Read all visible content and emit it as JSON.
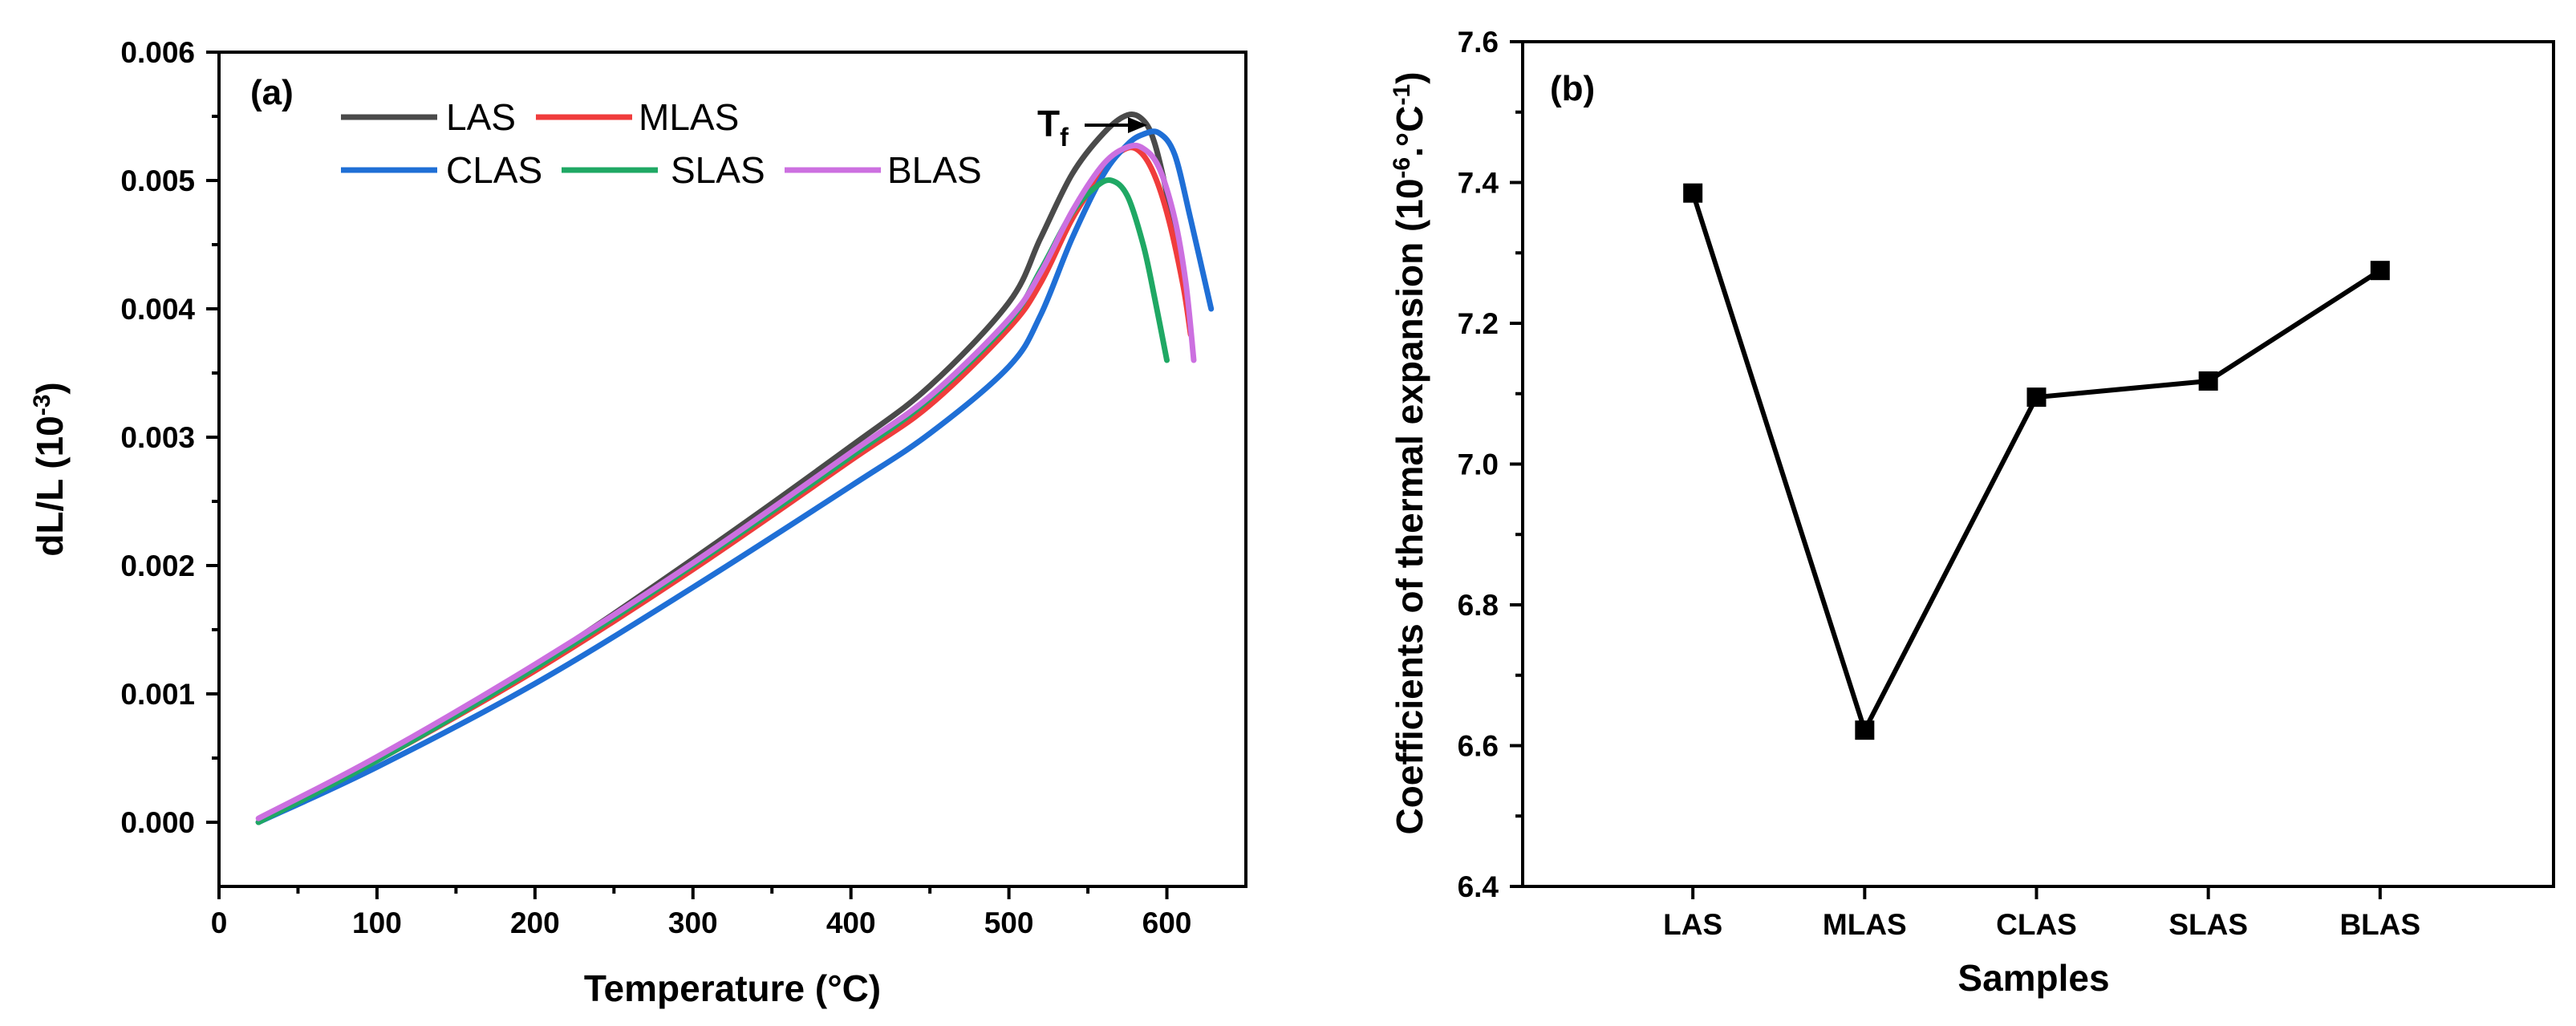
{
  "chart_data": [
    {
      "panel": "(a)",
      "type": "line",
      "xlabel": "Temperature (°C)",
      "ylabel_main": "dL/L (10",
      "ylabel_sup": "-3",
      "ylabel_end": ")",
      "xlim": [
        0,
        650
      ],
      "ylim": [
        -0.0005,
        0.006
      ],
      "xticks": [
        0,
        100,
        200,
        300,
        400,
        500,
        600
      ],
      "xtick_labels": [
        "0",
        "100",
        "200",
        "300",
        "400",
        "500",
        "600"
      ],
      "yticks": [
        0.0,
        0.001,
        0.002,
        0.003,
        0.004,
        0.005,
        0.006
      ],
      "ytick_labels": [
        "0.000",
        "0.001",
        "0.002",
        "0.003",
        "0.004",
        "0.005",
        "0.006"
      ],
      "legend_position": "top-left",
      "annotation": {
        "text": "T",
        "sub": "f"
      },
      "series": [
        {
          "name": "LAS",
          "color": "#4a4a4a",
          "x": [
            25,
            100,
            200,
            300,
            400,
            450,
            500,
            520,
            540,
            560,
            575,
            585,
            592,
            600,
            608
          ],
          "y": [
            0.0,
            0.0005,
            0.00122,
            0.00205,
            0.00293,
            0.0034,
            0.00405,
            0.00455,
            0.00505,
            0.00537,
            0.00551,
            0.00547,
            0.0053,
            0.0049,
            0.0044
          ]
        },
        {
          "name": "MLAS",
          "color": "#f03c3c",
          "x": [
            25,
            100,
            200,
            300,
            400,
            450,
            500,
            520,
            540,
            560,
            570,
            580,
            590,
            600,
            610,
            615
          ],
          "y": [
            0.0,
            0.00048,
            0.00118,
            0.00197,
            0.00282,
            0.00325,
            0.00385,
            0.0042,
            0.0047,
            0.00508,
            0.00522,
            0.00525,
            0.0051,
            0.00475,
            0.0042,
            0.0038
          ]
        },
        {
          "name": "CLAS",
          "color": "#1f6fd6",
          "x": [
            25,
            100,
            200,
            300,
            400,
            450,
            500,
            520,
            540,
            560,
            575,
            585,
            595,
            605,
            615,
            628
          ],
          "y": [
            0.0,
            0.00043,
            0.00108,
            0.00183,
            0.00262,
            0.00303,
            0.00355,
            0.00395,
            0.00455,
            0.00505,
            0.00528,
            0.00536,
            0.00537,
            0.0052,
            0.0047,
            0.004
          ]
        },
        {
          "name": "SLAS",
          "color": "#1fa864",
          "x": [
            25,
            100,
            200,
            300,
            400,
            450,
            500,
            520,
            540,
            555,
            565,
            575,
            585,
            592,
            600
          ],
          "y": [
            0.0,
            0.00048,
            0.0012,
            0.002,
            0.00285,
            0.0033,
            0.0039,
            0.0043,
            0.00475,
            0.00495,
            0.005,
            0.00488,
            0.0045,
            0.0041,
            0.0036
          ]
        },
        {
          "name": "BLAS",
          "color": "#cc70e0",
          "x": [
            25,
            100,
            200,
            300,
            400,
            450,
            500,
            520,
            540,
            560,
            575,
            585,
            595,
            605,
            612,
            617
          ],
          "y": [
            3e-05,
            0.00051,
            0.00123,
            0.00202,
            0.00288,
            0.00332,
            0.00392,
            0.00428,
            0.00476,
            0.00513,
            0.00526,
            0.00525,
            0.0051,
            0.0047,
            0.0042,
            0.0036
          ]
        }
      ]
    },
    {
      "panel": "(b)",
      "type": "line",
      "xlabel": "Samples",
      "ylabel_main": "Coefficients of thermal expansion (10",
      "ylabel_sup": "-6",
      "ylabel_mid": ".°C",
      "ylabel_sup2": "-1",
      "ylabel_end": ")",
      "categories": [
        "LAS",
        "MLAS",
        "CLAS",
        "SLAS",
        "BLAS"
      ],
      "values": [
        7.385,
        6.622,
        7.095,
        7.118,
        7.275
      ],
      "ylim": [
        6.4,
        7.6
      ],
      "yticks": [
        6.4,
        6.6,
        6.8,
        7.0,
        7.2,
        7.4,
        7.6
      ],
      "ytick_labels": [
        "6.4",
        "6.6",
        "6.8",
        "7.0",
        "7.2",
        "7.4",
        "7.6"
      ],
      "marker": "square",
      "color": "#000000"
    }
  ]
}
